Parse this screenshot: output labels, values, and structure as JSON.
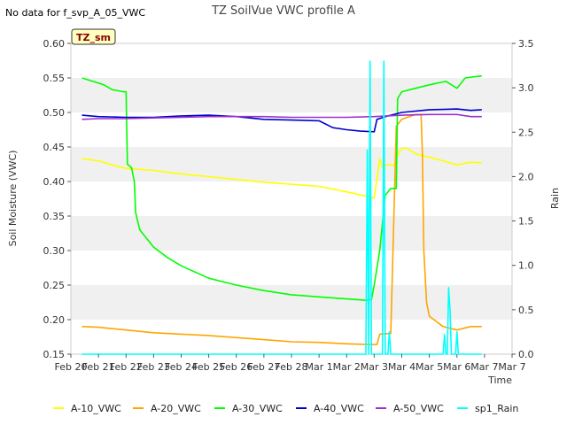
{
  "chart_data": {
    "type": "line",
    "title": "TZ SoilVue VWC profile A",
    "note": "No data for f_svp_A_05_VWC",
    "badge": "TZ_sm",
    "xlabel": "Time",
    "ylabel": "Soil Moisture (VWC)",
    "y2label": "Rain",
    "x_range": [
      0,
      16
    ],
    "ylim": [
      0.15,
      0.6
    ],
    "y2lim": [
      0.0,
      3.5
    ],
    "x_tick_values": [
      0,
      1,
      2,
      3,
      4,
      5,
      6,
      7,
      8,
      9,
      10,
      11,
      12,
      13,
      14,
      15,
      16
    ],
    "x_tick_labels": [
      "Feb 20",
      "Feb 21",
      "Feb 22",
      "Feb 23",
      "Feb 24",
      "Feb 25",
      "Feb 26",
      "Feb 27",
      "Feb 28",
      "Mar 1",
      "Mar 2",
      "Mar 3",
      "Mar 4",
      "Mar 5",
      "Mar 6",
      "Mar 7",
      "Mar 7"
    ],
    "y_ticks": [
      "0.15",
      "0.20",
      "0.25",
      "0.30",
      "0.35",
      "0.40",
      "0.45",
      "0.50",
      "0.55",
      "0.60"
    ],
    "y2_ticks": [
      "0.0",
      "0.5",
      "1.0",
      "1.5",
      "2.0",
      "2.5",
      "3.0",
      "3.5"
    ],
    "series": [
      {
        "name": "A-10_VWC",
        "axis": "left",
        "color": "#ffff00",
        "x": [
          0.4,
          1.0,
          1.5,
          2.0,
          3.0,
          4.0,
          5.0,
          6.0,
          7.0,
          8.0,
          9.0,
          10.0,
          10.8,
          11.0,
          11.2,
          11.3,
          11.5,
          11.7,
          11.9,
          12.0,
          12.2,
          12.5,
          13.0,
          13.5,
          14.0,
          14.5,
          14.9
        ],
        "y": [
          0.433,
          0.43,
          0.424,
          0.419,
          0.416,
          0.411,
          0.407,
          0.403,
          0.399,
          0.396,
          0.393,
          0.385,
          0.378,
          0.376,
          0.433,
          0.42,
          0.425,
          0.423,
          0.443,
          0.448,
          0.448,
          0.44,
          0.435,
          0.43,
          0.424,
          0.428,
          0.427
        ]
      },
      {
        "name": "A-20_VWC",
        "axis": "left",
        "color": "#ffa500",
        "x": [
          0.4,
          1.0,
          2.0,
          3.0,
          4.0,
          5.0,
          6.0,
          7.0,
          8.0,
          9.0,
          10.0,
          10.8,
          11.1,
          11.2,
          11.6,
          11.8,
          12.0,
          12.5,
          12.7,
          12.75,
          12.8,
          12.9,
          13.0,
          13.5,
          14.0,
          14.5,
          14.9
        ],
        "y": [
          0.19,
          0.189,
          0.185,
          0.181,
          0.179,
          0.177,
          0.174,
          0.171,
          0.168,
          0.167,
          0.165,
          0.164,
          0.164,
          0.179,
          0.18,
          0.48,
          0.49,
          0.497,
          0.497,
          0.44,
          0.3,
          0.225,
          0.205,
          0.19,
          0.185,
          0.19,
          0.19
        ]
      },
      {
        "name": "A-30_VWC",
        "axis": "left",
        "color": "#00ff00",
        "x": [
          0.4,
          0.8,
          1.2,
          1.5,
          1.9,
          2.0,
          2.05,
          2.2,
          2.3,
          2.35,
          2.5,
          3.0,
          3.5,
          4.0,
          5.0,
          6.0,
          7.0,
          8.0,
          9.0,
          10.0,
          10.7,
          10.9,
          11.0,
          11.2,
          11.4,
          11.6,
          11.8,
          11.85,
          12.0,
          12.5,
          13.0,
          13.6,
          14.0,
          14.3,
          14.9
        ],
        "y": [
          0.55,
          0.545,
          0.54,
          0.533,
          0.53,
          0.53,
          0.425,
          0.42,
          0.4,
          0.355,
          0.33,
          0.305,
          0.29,
          0.278,
          0.26,
          0.25,
          0.242,
          0.236,
          0.233,
          0.23,
          0.228,
          0.229,
          0.25,
          0.3,
          0.38,
          0.39,
          0.39,
          0.52,
          0.53,
          0.535,
          0.54,
          0.545,
          0.535,
          0.55,
          0.553
        ]
      },
      {
        "name": "A-40_VWC",
        "axis": "left",
        "color": "#0000cd",
        "x": [
          0.4,
          1.0,
          2.0,
          3.0,
          4.0,
          5.0,
          6.0,
          7.0,
          8.0,
          9.0,
          9.5,
          10.0,
          10.5,
          11.0,
          11.1,
          11.5,
          12.0,
          13.0,
          14.0,
          14.5,
          14.9
        ],
        "y": [
          0.496,
          0.494,
          0.493,
          0.493,
          0.495,
          0.496,
          0.494,
          0.49,
          0.489,
          0.488,
          0.478,
          0.475,
          0.473,
          0.472,
          0.49,
          0.495,
          0.5,
          0.504,
          0.505,
          0.503,
          0.504
        ]
      },
      {
        "name": "A-50_VWC",
        "axis": "left",
        "color": "#9932cc",
        "x": [
          0.4,
          1.0,
          2.0,
          3.0,
          4.0,
          5.0,
          6.0,
          7.0,
          8.0,
          9.0,
          10.0,
          11.0,
          12.0,
          13.0,
          14.0,
          14.5,
          14.9
        ],
        "y": [
          0.49,
          0.491,
          0.491,
          0.492,
          0.493,
          0.494,
          0.494,
          0.494,
          0.493,
          0.493,
          0.493,
          0.494,
          0.496,
          0.497,
          0.497,
          0.494,
          0.494
        ]
      },
      {
        "name": "sp1_Rain",
        "axis": "right",
        "color": "#00ffff",
        "x": [
          0.4,
          10.7,
          10.75,
          10.8,
          10.85,
          10.9,
          10.95,
          11.0,
          11.3,
          11.35,
          11.4,
          11.45,
          11.5,
          11.55,
          11.6,
          11.65,
          11.7,
          11.75,
          12.0,
          13.5,
          13.55,
          13.6,
          13.65,
          13.7,
          13.75,
          13.8,
          13.85,
          13.9,
          13.95,
          14.0,
          14.05,
          14.1,
          14.15,
          14.9
        ],
        "y": [
          0.0,
          0.0,
          2.3,
          0.0,
          3.3,
          0.0,
          0.0,
          0.0,
          0.0,
          3.3,
          0.0,
          0.0,
          0.0,
          0.25,
          0.0,
          0.0,
          0.0,
          0.0,
          0.0,
          0.0,
          0.22,
          0.0,
          0.0,
          0.75,
          0.5,
          0.0,
          0.0,
          0.0,
          0.0,
          0.25,
          0.0,
          0.0,
          0.0,
          0.0
        ]
      }
    ]
  }
}
